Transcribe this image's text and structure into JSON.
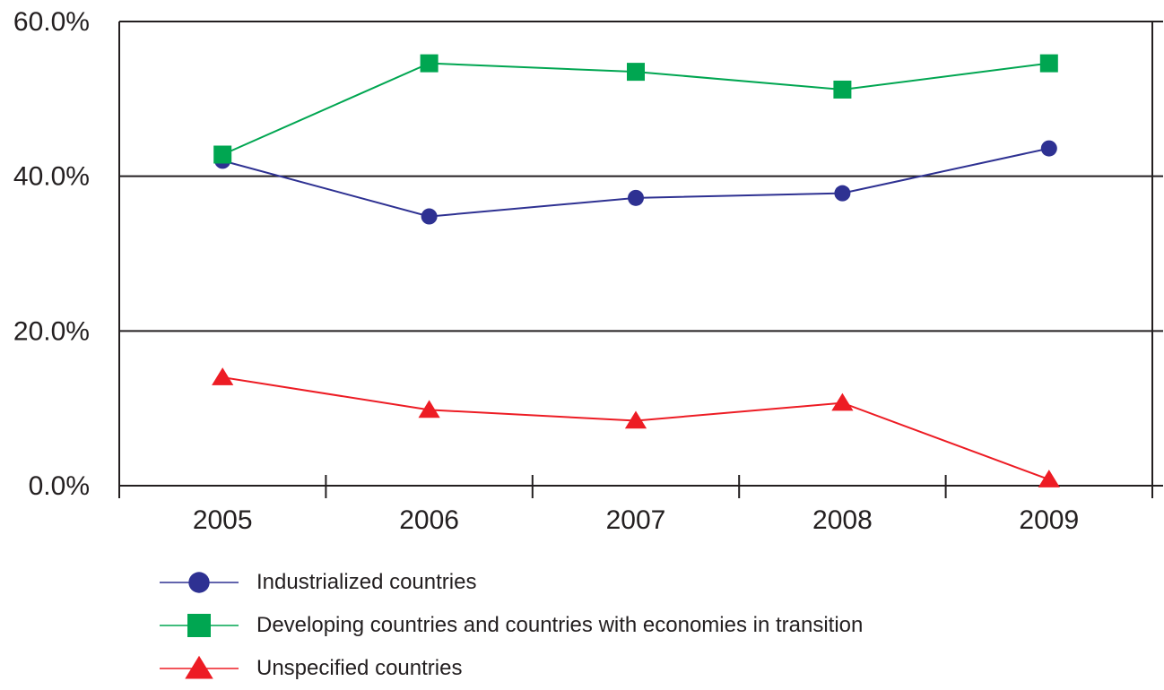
{
  "chart_data": {
    "type": "line",
    "title": "",
    "xlabel": "",
    "ylabel": "",
    "categories": [
      "2005",
      "2006",
      "2007",
      "2008",
      "2009"
    ],
    "ylim": [
      0,
      60
    ],
    "y_ticks": [
      0,
      20,
      40,
      60
    ],
    "y_tick_labels": [
      "0.0%",
      "20.0%",
      "40.0%",
      "60.0%"
    ],
    "grid": true,
    "legend_position": "bottom",
    "series": [
      {
        "name": "Industrialized countries",
        "marker": "circle",
        "color": "#2e3192",
        "values": [
          42.0,
          34.8,
          37.2,
          37.8,
          43.6
        ]
      },
      {
        "name": "Developing countries and countries with economies in transition",
        "marker": "square",
        "color": "#00a651",
        "values": [
          42.8,
          54.6,
          53.5,
          51.2,
          54.6
        ]
      },
      {
        "name": "Unspecified countries",
        "marker": "triangle",
        "color": "#ed1c24",
        "values": [
          14.0,
          9.8,
          8.4,
          10.7,
          0.8
        ]
      }
    ]
  }
}
